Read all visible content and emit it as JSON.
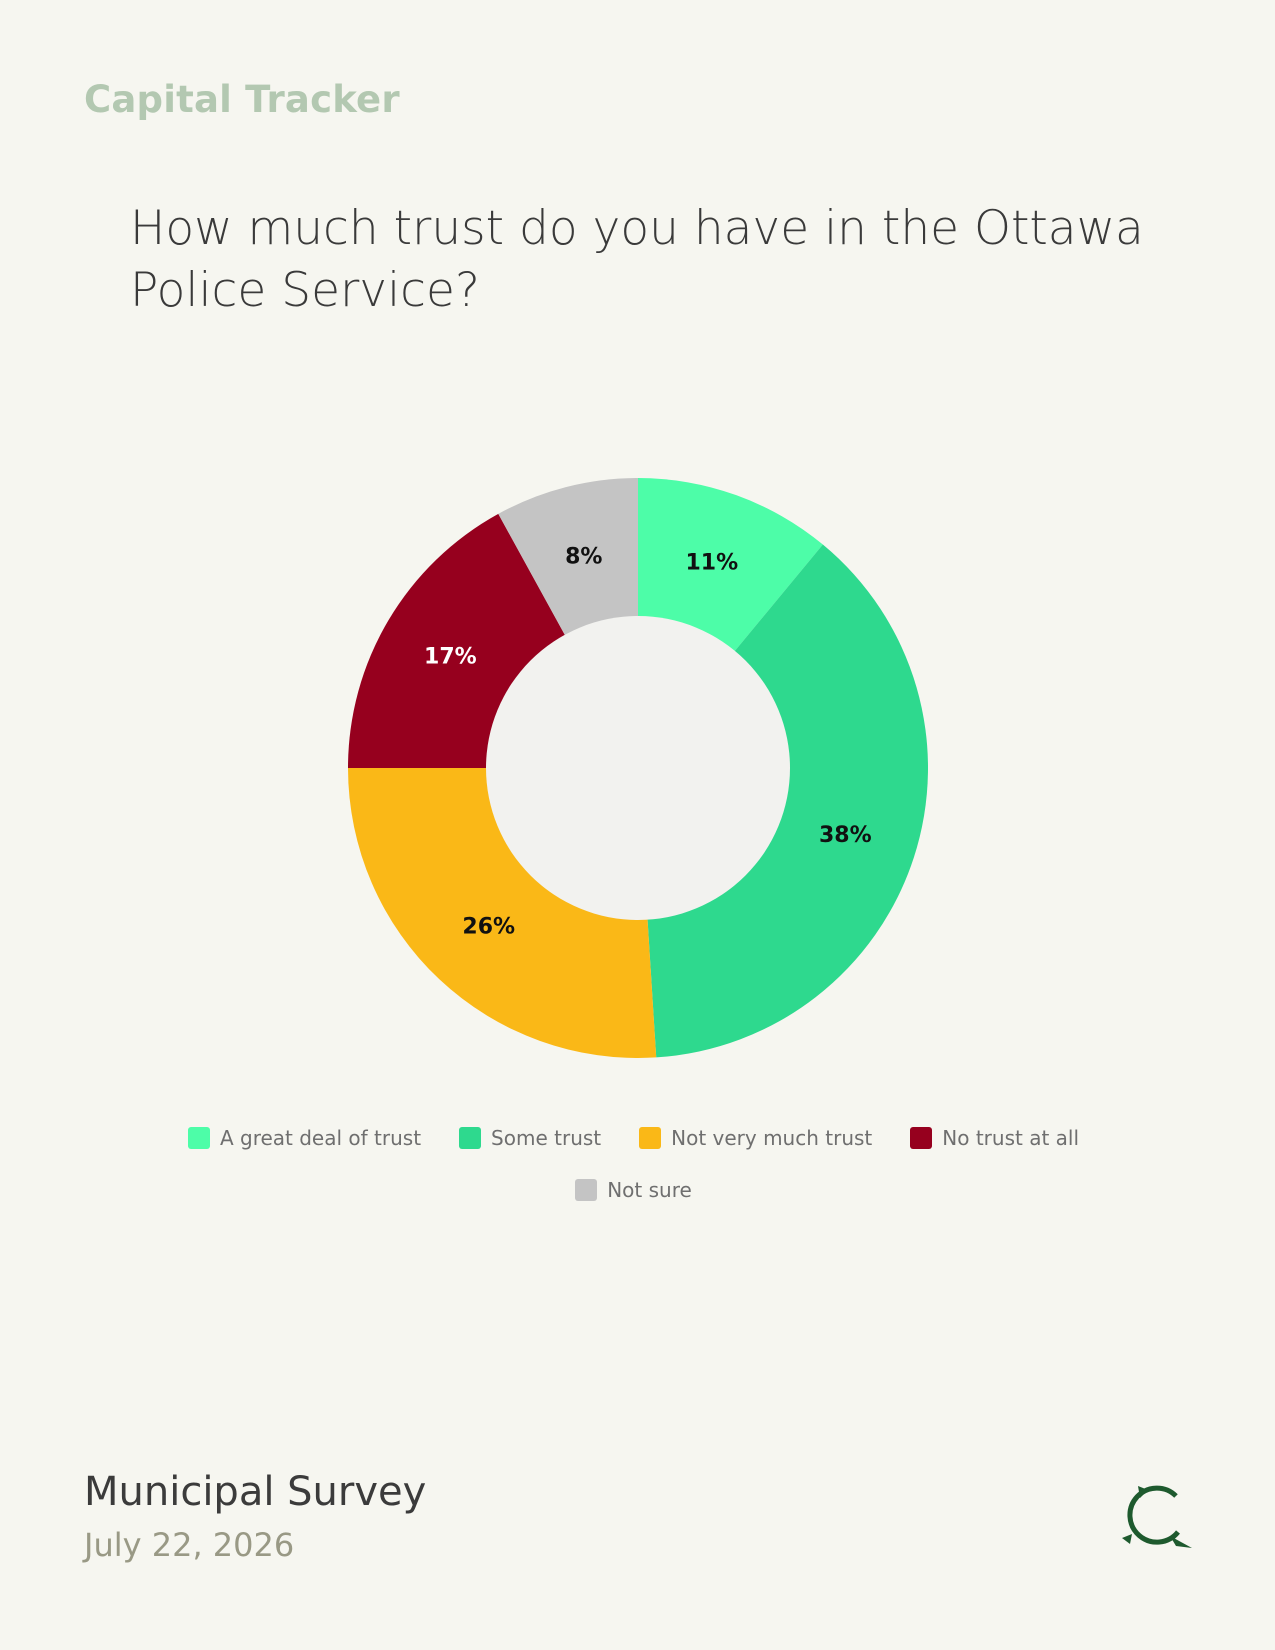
{
  "header": {
    "brand": "Capital Tracker"
  },
  "question": "How much trust do you have in the Ottawa Police Service?",
  "chart_data": {
    "type": "pie",
    "style": "donut",
    "categories": [
      "A great deal of trust",
      "Some trust",
      "Not very much trust",
      "No trust at all",
      "Not sure"
    ],
    "values": [
      11,
      38,
      26,
      17,
      8
    ],
    "labels": [
      "11%",
      "38%",
      "26%",
      "17%",
      "8%"
    ],
    "unit": "%",
    "colors": [
      "#4dfda8",
      "#2ed98e",
      "#fab817",
      "#96001e",
      "#c4c4c4"
    ],
    "label_colors": [
      "#111111",
      "#111111",
      "#111111",
      "#ffffff",
      "#111111"
    ],
    "hole_color": "#f2f2ef",
    "legend_position": "bottom"
  },
  "footer": {
    "title": "Municipal Survey",
    "date": "July 22, 2026"
  },
  "logo": {
    "icon": "capital-tracker-logo-icon",
    "color": "#1e5a2e"
  }
}
